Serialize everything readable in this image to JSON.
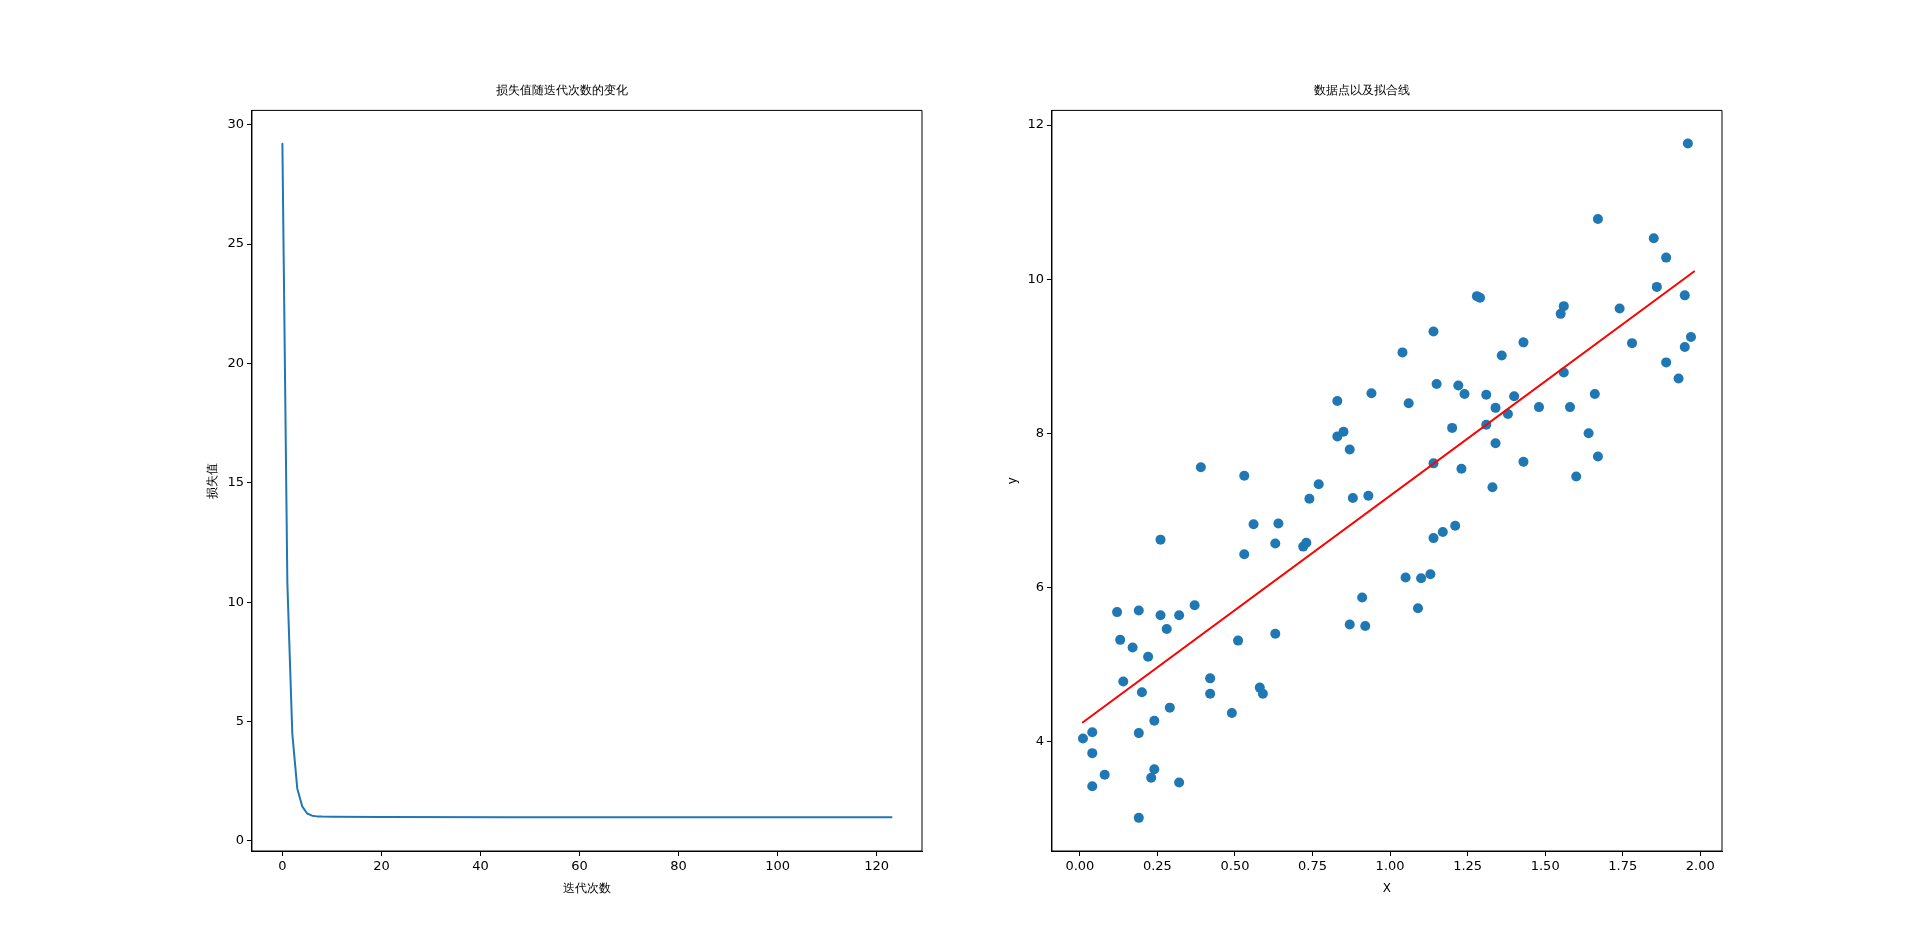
{
  "chart_data": [
    {
      "type": "line",
      "title": "损失值随迭代次数的变化",
      "xlabel": "迭代次数",
      "ylabel": "损失值",
      "xlim": [
        -6.15,
        129.15
      ],
      "ylim": [
        -0.42,
        30.6
      ],
      "xticks": [
        0,
        20,
        40,
        60,
        80,
        100,
        120
      ],
      "yticks": [
        0,
        5,
        10,
        15,
        20,
        25,
        30
      ],
      "grid": false,
      "x": [
        0,
        1,
        2,
        3,
        4,
        5,
        6,
        7,
        8,
        10,
        20,
        50,
        123
      ],
      "series": [
        {
          "color": "#1f77b4",
          "values": [
            29.2,
            10.8,
            4.5,
            2.2,
            1.45,
            1.15,
            1.06,
            1.03,
            1.02,
            1.01,
            1.0,
            0.99,
            0.99
          ]
        }
      ]
    },
    {
      "type": "scatter",
      "title": "数据点以及拟合线",
      "xlabel": "X",
      "ylabel": "y",
      "xlim": [
        -0.09,
        2.07
      ],
      "ylim": [
        2.58,
        12.19
      ],
      "xticks": [
        {
          "value": 0,
          "label": "0.00"
        },
        {
          "value": 0.25,
          "label": "0.25"
        },
        {
          "value": 0.5,
          "label": "0.50"
        },
        {
          "value": 0.75,
          "label": "0.75"
        },
        {
          "value": 1,
          "label": "1.00"
        },
        {
          "value": 1.25,
          "label": "1.25"
        },
        {
          "value": 1.5,
          "label": "1.50"
        },
        {
          "value": 1.75,
          "label": "1.75"
        },
        {
          "value": 2,
          "label": "2.00"
        }
      ],
      "yticks": [
        4,
        6,
        8,
        10,
        12
      ],
      "grid": false,
      "marker": "circle",
      "series": [
        {
          "color": "#1f77b4",
          "x": [
            0.01,
            0.04,
            0.04,
            0.04,
            0.08,
            0.12,
            0.13,
            0.14,
            0.17,
            0.19,
            0.19,
            0.19,
            0.2,
            0.22,
            0.24,
            0.23,
            0.24,
            0.26,
            0.26,
            0.28,
            0.29,
            0.32,
            0.32,
            0.37,
            0.39,
            0.42,
            0.42,
            0.49,
            0.51,
            0.53,
            0.53,
            0.56,
            0.58,
            0.59,
            0.63,
            0.63,
            0.64,
            0.72,
            0.73,
            0.74,
            0.77,
            0.83,
            0.85,
            0.87,
            0.88,
            0.93,
            0.91,
            0.87,
            0.92,
            0.83,
            0.94,
            1.96,
            1.67,
            1.85,
            1.89,
            1.28,
            1.29,
            1.86,
            1.95,
            1.56,
            1.55,
            1.74,
            1.14,
            1.04,
            1.43,
            1.78,
            1.97,
            1.95,
            1.36,
            1.89,
            1.93,
            1.56,
            1.15,
            1.22,
            1.24,
            1.06,
            1.31,
            1.4,
            1.66,
            1.34,
            1.48,
            1.58,
            1.38,
            1.2,
            1.31,
            1.64,
            1.34,
            1.67,
            1.14,
            1.43,
            1.23,
            1.6,
            1.33,
            1.21,
            1.17,
            1.14,
            1.05,
            1.1,
            1.13,
            1.09
          ],
          "values": [
            4.04,
            4.12,
            3.85,
            3.42,
            3.57,
            5.68,
            5.32,
            4.78,
            5.22,
            5.7,
            4.11,
            3.01,
            4.64,
            5.1,
            4.27,
            3.53,
            3.64,
            6.62,
            5.64,
            5.46,
            4.44,
            3.47,
            5.64,
            5.77,
            7.56,
            4.82,
            4.62,
            4.37,
            5.31,
            7.45,
            6.43,
            6.82,
            4.7,
            4.62,
            6.57,
            5.4,
            6.83,
            6.53,
            6.58,
            7.15,
            7.34,
            7.96,
            8.02,
            7.79,
            7.16,
            7.19,
            5.87,
            5.52,
            5.5,
            8.42,
            8.52,
            11.76,
            10.78,
            10.53,
            10.28,
            9.78,
            9.76,
            9.9,
            9.79,
            9.65,
            9.55,
            9.62,
            9.32,
            9.05,
            9.18,
            9.17,
            9.25,
            9.12,
            9.01,
            8.92,
            8.71,
            8.79,
            8.64,
            8.62,
            8.51,
            8.39,
            8.5,
            8.48,
            8.51,
            8.33,
            8.34,
            8.34,
            8.25,
            8.07,
            8.11,
            8.0,
            7.87,
            7.7,
            7.61,
            7.63,
            7.54,
            7.44,
            7.3,
            6.8,
            6.72,
            6.64,
            6.13,
            6.12,
            6.17,
            5.73
          ]
        },
        {
          "type": "line",
          "marker": "none",
          "color": "#ff0000",
          "x": [
            0.01,
            1.98
          ],
          "values": [
            4.25,
            10.1
          ]
        }
      ]
    }
  ]
}
